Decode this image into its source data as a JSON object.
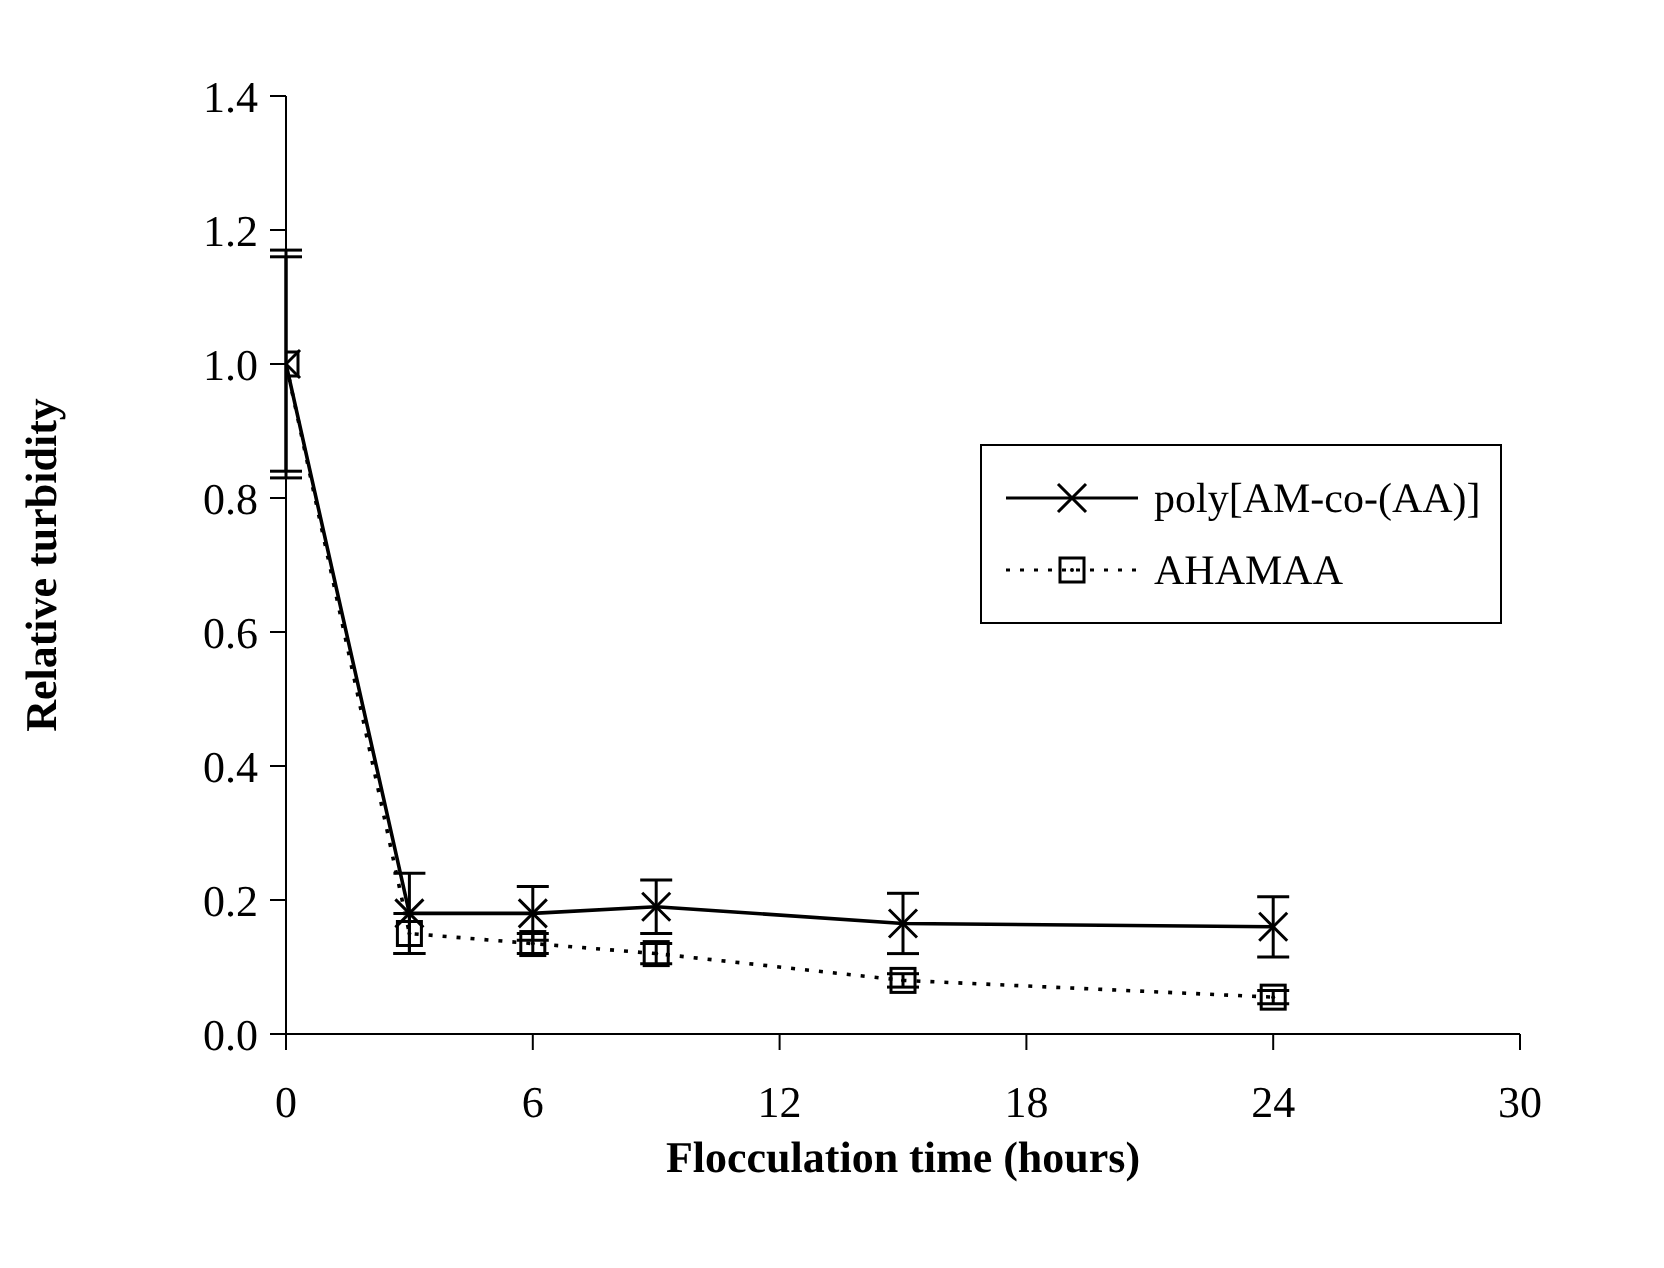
{
  "chart_data": {
    "type": "line",
    "xlabel": "Flocculation time (hours)",
    "ylabel": "Relative turbidity",
    "x": [
      0,
      3,
      6,
      9,
      15,
      24
    ],
    "series": [
      {
        "name": "poly[AM-co-(AA)]",
        "color": "#000000",
        "marker": "cross",
        "line_style": "solid",
        "values": [
          1.0,
          0.18,
          0.18,
          0.19,
          0.165,
          0.16
        ],
        "errors": [
          0.17,
          0.06,
          0.04,
          0.04,
          0.045,
          0.045
        ]
      },
      {
        "name": "AHAMAA",
        "color": "#000000",
        "marker": "square",
        "line_style": "dotted",
        "values": [
          1.0,
          0.15,
          0.135,
          0.12,
          0.08,
          0.055
        ],
        "errors": [
          0.16,
          0.03,
          0.015,
          0.015,
          0.01,
          0.01
        ]
      }
    ],
    "xlim": [
      0,
      30
    ],
    "xticks": [
      0,
      6,
      12,
      18,
      24,
      30
    ],
    "ylim": [
      0,
      1.4
    ],
    "yticks": [
      {
        "value": 0,
        "label": "0.0"
      },
      0.2,
      0.4,
      0.6,
      0.8,
      {
        "value": 1,
        "label": "1.0"
      },
      1.2,
      1.4
    ],
    "grid": false,
    "legend": "right"
  }
}
